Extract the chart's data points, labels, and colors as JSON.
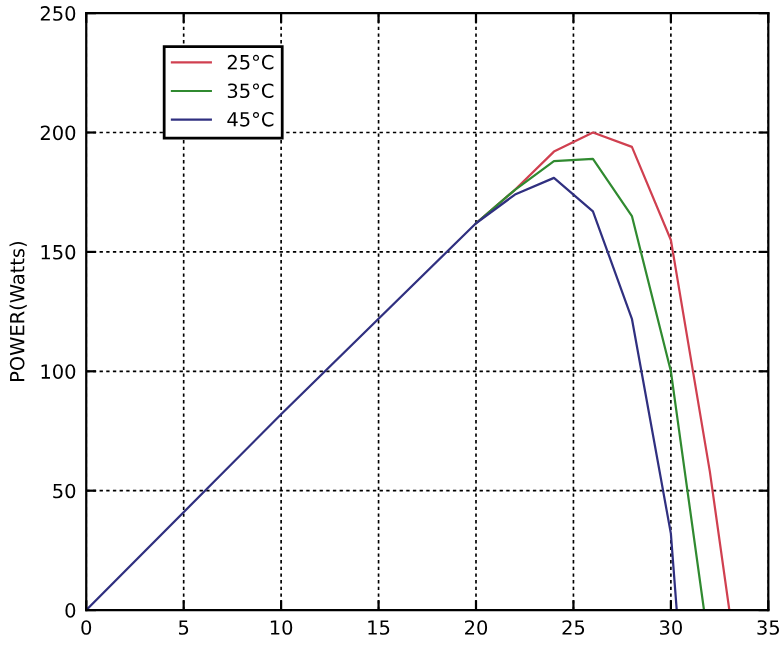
{
  "chart_data": {
    "type": "line",
    "ylabel": "POWER(Watts)",
    "xlim": [
      0,
      35
    ],
    "ylim": [
      0,
      250
    ],
    "xticks": [
      0,
      5,
      10,
      15,
      20,
      25,
      30,
      35
    ],
    "yticks": [
      0,
      50,
      100,
      150,
      200,
      250
    ],
    "grid": true,
    "legend": "top left",
    "marker": "none",
    "line_style": "solid",
    "series": [
      {
        "name": "25°C",
        "color": "#d04050",
        "x": [
          20,
          22,
          24,
          26,
          28,
          30,
          32,
          33
        ],
        "values": [
          162,
          176,
          192,
          200,
          194,
          155,
          58,
          0
        ]
      },
      {
        "name": "35°C",
        "color": "#308a30",
        "x": [
          20,
          22,
          24,
          26,
          28,
          30,
          31.7
        ],
        "values": [
          162,
          176,
          188,
          189,
          165,
          100,
          0
        ]
      },
      {
        "name": "45°C",
        "color": "#303080",
        "x": [
          0,
          10,
          20,
          22,
          24,
          26,
          28,
          30,
          30.3
        ],
        "values": [
          0,
          82,
          162,
          174,
          181,
          167,
          122,
          32,
          0
        ]
      }
    ]
  }
}
